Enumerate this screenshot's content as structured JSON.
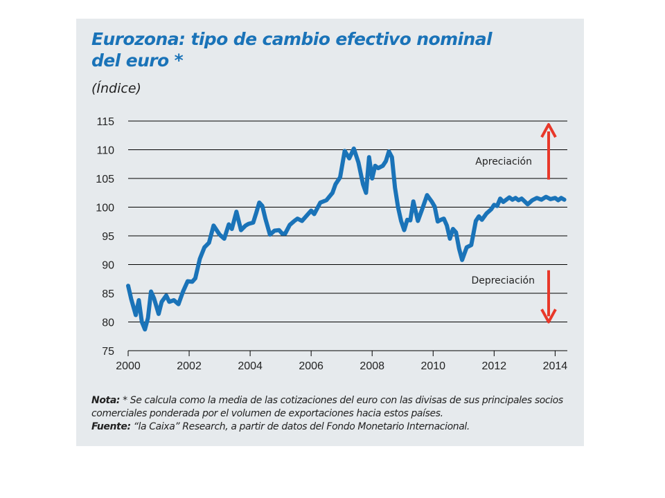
{
  "title_line1": "Eurozona: tipo de cambio efectivo nominal",
  "title_line2": "del euro *",
  "subtitle": "(Índice)",
  "notes": {
    "nota_label": "Nota:",
    "nota_text": " * Se calcula como la media de las cotizaciones del euro con las divisas de sus principales socios comerciales ponderada por el volumen de exportaciones hacia estos países.",
    "fuente_label": "Fuente:",
    "fuente_text": " “la Caixa” Research, a partir de datos del Fondo Monetario Internacional."
  },
  "colors": {
    "line": "#1a73b8",
    "arrow": "#e8382a",
    "grid": "#000000",
    "panel": "#e6eaed"
  },
  "chart_data": {
    "type": "line",
    "ylim": [
      75,
      115
    ],
    "xlim": [
      2000,
      2014.4
    ],
    "yticks": [
      75,
      80,
      85,
      90,
      95,
      100,
      105,
      110,
      115
    ],
    "xticks": [
      2000,
      2002,
      2004,
      2006,
      2008,
      2010,
      2012,
      2014
    ],
    "grid": "horizontal",
    "annotations": [
      {
        "text": "Apreciación",
        "arrow": "up"
      },
      {
        "text": "Depreciación",
        "arrow": "down"
      }
    ],
    "series": [
      {
        "x": [
          2000.0,
          2000.1,
          2000.25,
          2000.35,
          2000.45,
          2000.55,
          2000.65,
          2000.75,
          2000.85,
          2001.0,
          2001.1,
          2001.25,
          2001.35,
          2001.5,
          2001.65,
          2001.8,
          2001.95,
          2002.1,
          2002.2,
          2002.35,
          2002.5,
          2002.65,
          2002.8,
          2003.0,
          2003.15,
          2003.3,
          2003.4,
          2003.55,
          2003.7,
          2003.85,
          2003.95,
          2004.1,
          2004.2,
          2004.3,
          2004.4,
          2004.5,
          2004.65,
          2004.8,
          2004.95,
          2005.05,
          2005.15,
          2005.3,
          2005.45,
          2005.55,
          2005.7,
          2005.85,
          2006.0,
          2006.1,
          2006.3,
          2006.5,
          2006.7,
          2006.8,
          2006.95,
          2007.1,
          2007.25,
          2007.4,
          2007.55,
          2007.7,
          2007.8,
          2007.9,
          2008.0,
          2008.1,
          2008.2,
          2008.35,
          2008.45,
          2008.55,
          2008.65,
          2008.75,
          2008.85,
          2008.95,
          2009.05,
          2009.15,
          2009.25,
          2009.35,
          2009.5,
          2009.65,
          2009.8,
          2009.95,
          2010.05,
          2010.15,
          2010.25,
          2010.35,
          2010.45,
          2010.55,
          2010.65,
          2010.75,
          2010.85,
          2010.95,
          2011.1,
          2011.25,
          2011.4,
          2011.5,
          2011.6,
          2011.75,
          2011.9,
          2012.0,
          2012.1,
          2012.2,
          2012.3,
          2012.4,
          2012.5,
          2012.6,
          2012.7,
          2012.8,
          2012.9,
          2013.0,
          2013.1,
          2013.25,
          2013.4,
          2013.55,
          2013.7,
          2013.85,
          2014.0,
          2014.1,
          2014.2,
          2014.3
        ],
        "values": [
          86.3,
          84.0,
          81.2,
          83.8,
          80.0,
          78.7,
          80.7,
          85.3,
          84.1,
          81.4,
          83.5,
          84.6,
          83.5,
          83.8,
          83.1,
          85.3,
          87.1,
          87.0,
          87.6,
          91.0,
          93.0,
          93.8,
          96.8,
          95.2,
          94.5,
          97.0,
          96.2,
          99.2,
          96.0,
          96.8,
          97.1,
          97.3,
          99.0,
          100.8,
          100.2,
          98.0,
          95.2,
          95.9,
          96.0,
          95.4,
          95.4,
          96.9,
          97.6,
          98.0,
          97.6,
          98.5,
          99.4,
          98.8,
          100.8,
          101.2,
          102.5,
          104.0,
          105.2,
          109.8,
          108.5,
          110.2,
          107.8,
          104.0,
          102.5,
          108.7,
          105.0,
          107.2,
          106.8,
          107.2,
          108.0,
          109.7,
          108.7,
          103.4,
          100.0,
          97.6,
          96.0,
          97.8,
          97.7,
          101.0,
          97.6,
          99.8,
          102.1,
          101.0,
          100.1,
          97.5,
          97.8,
          98.0,
          96.8,
          94.5,
          96.2,
          95.6,
          92.8,
          90.8,
          93.0,
          93.4,
          97.6,
          98.4,
          97.8,
          98.9,
          99.6,
          100.4,
          100.2,
          101.5,
          100.9,
          101.3,
          101.7,
          101.3,
          101.6,
          101.2,
          101.5,
          101.0,
          100.5,
          101.2,
          101.6,
          101.3,
          101.8,
          101.4,
          101.6,
          101.2,
          101.6,
          101.3
        ]
      }
    ]
  }
}
